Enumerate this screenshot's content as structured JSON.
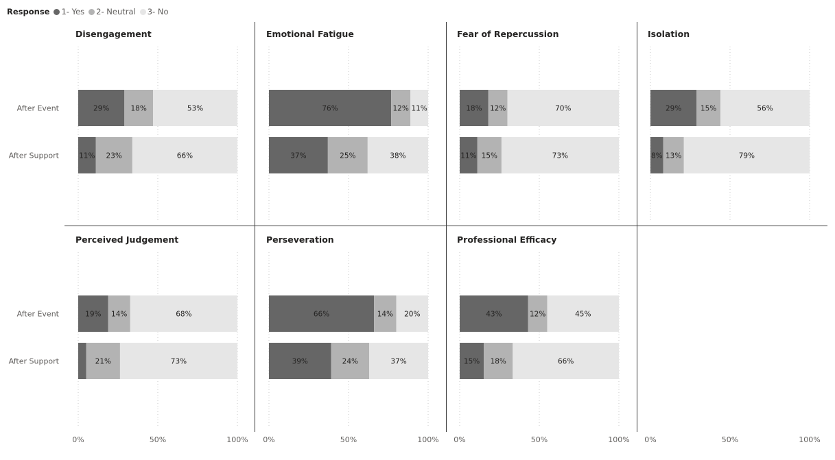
{
  "legend": {
    "title": "Response",
    "items": [
      {
        "label": "1- Yes",
        "color": "#666666"
      },
      {
        "label": "2- Neutral",
        "color": "#b3b3b3"
      },
      {
        "label": "3- No",
        "color": "#e6e6e6"
      }
    ]
  },
  "chart_data": {
    "type": "bar",
    "orientation": "horizontal",
    "stacked": "100%",
    "layout": "small-multiples",
    "categories": [
      "After Event",
      "After Support"
    ],
    "xlim": [
      0,
      100
    ],
    "x_ticks": [
      "0%",
      "50%",
      "100%"
    ],
    "grid": true,
    "legend_position": "top-left",
    "series_names": [
      "1- Yes",
      "2- Neutral",
      "3- No"
    ],
    "panels": [
      {
        "title": "Disengagement",
        "values": [
          [
            29,
            18,
            53
          ],
          [
            11,
            23,
            66
          ]
        ]
      },
      {
        "title": "Emotional Fatigue",
        "values": [
          [
            76,
            12,
            11
          ],
          [
            37,
            25,
            38
          ]
        ]
      },
      {
        "title": "Fear of Repercussion",
        "values": [
          [
            18,
            12,
            70
          ],
          [
            11,
            15,
            73
          ]
        ]
      },
      {
        "title": "Isolation",
        "values": [
          [
            29,
            15,
            56
          ],
          [
            8,
            13,
            79
          ]
        ]
      },
      {
        "title": "Perceived Judgement",
        "values": [
          [
            19,
            14,
            68
          ],
          [
            5,
            21,
            73
          ]
        ]
      },
      {
        "title": "Perseveration",
        "values": [
          [
            66,
            14,
            20
          ],
          [
            39,
            24,
            37
          ]
        ]
      },
      {
        "title": "Professional Efficacy",
        "values": [
          [
            43,
            12,
            45
          ],
          [
            15,
            18,
            66
          ]
        ]
      }
    ],
    "data_labels": [
      [
        [
          "29%",
          "18%",
          "53%"
        ],
        [
          "11%",
          "23%",
          "66%"
        ]
      ],
      [
        [
          "76%",
          "12%",
          "11%"
        ],
        [
          "37%",
          "25%",
          "38%"
        ]
      ],
      [
        [
          "18%",
          "12%",
          "70%"
        ],
        [
          "11%",
          "15%",
          "73%"
        ]
      ],
      [
        [
          "29%",
          "15%",
          "56%"
        ],
        [
          "8%",
          "13%",
          "79%"
        ]
      ],
      [
        [
          "19%",
          "14%",
          "68%"
        ],
        [
          "",
          "21%",
          "73%"
        ]
      ],
      [
        [
          "66%",
          "14%",
          "20%"
        ],
        [
          "39%",
          "24%",
          "37%"
        ]
      ],
      [
        [
          "43%",
          "12%",
          "45%"
        ],
        [
          "15%",
          "18%",
          "66%"
        ]
      ]
    ]
  }
}
